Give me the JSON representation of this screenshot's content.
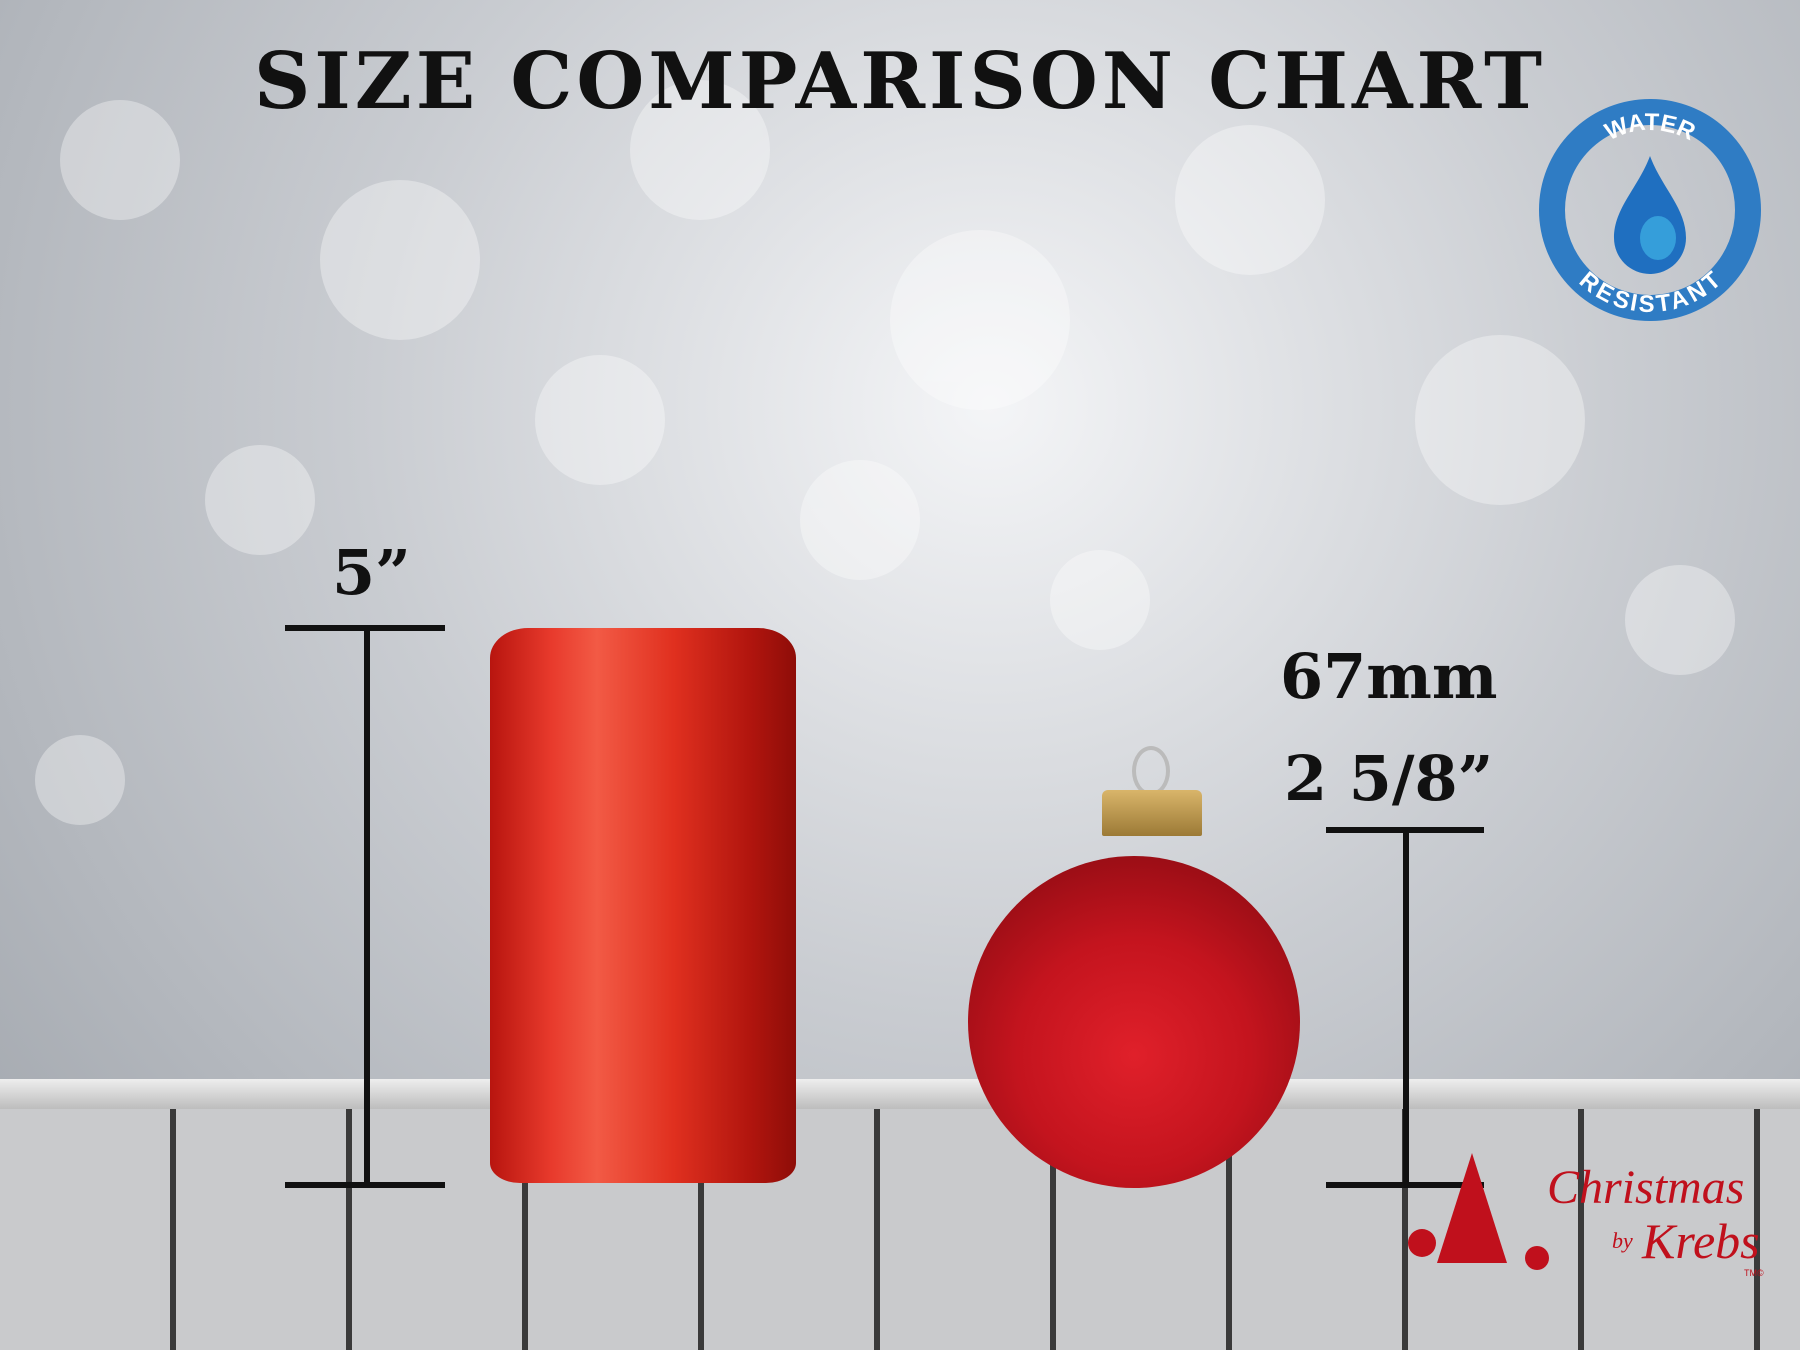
{
  "title": "SIZE COMPARISON CHART",
  "badge": {
    "top_text": "WATER",
    "bottom_text": "RESISTANT",
    "icon": "water-drop-icon",
    "color": "#2f7cc4"
  },
  "can": {
    "height_label": "5”",
    "color": "#e0301f"
  },
  "ornament": {
    "metric_label": "67mm",
    "imperial_label": "2 5/8”",
    "color": "#c4141e"
  },
  "logo": {
    "line1": "Christmas",
    "line2": "by",
    "line3": "Krebs",
    "mark": "TM©",
    "color": "#c0101c"
  }
}
